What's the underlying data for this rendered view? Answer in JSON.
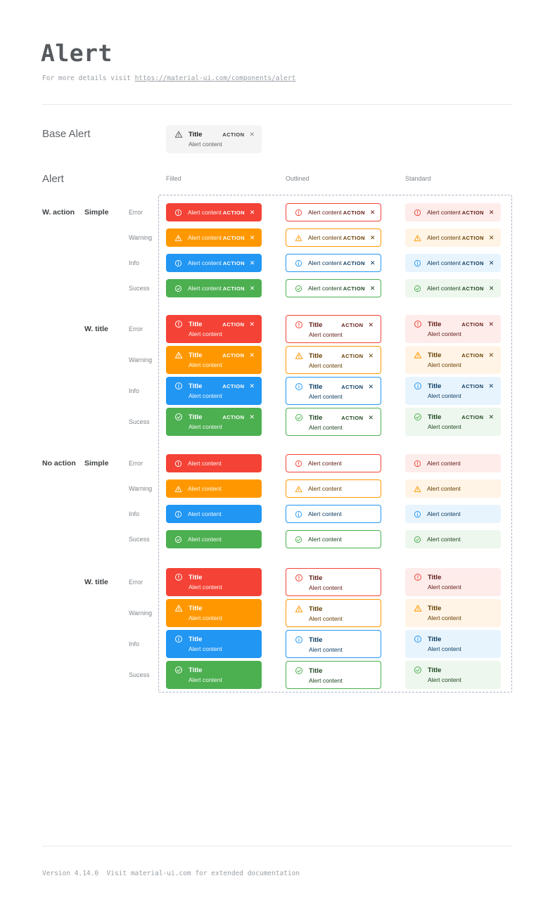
{
  "page": {
    "title": "Alert",
    "subtitle_prefix": "For more details visit ",
    "subtitle_link": "https://material-ui.com/components/alert",
    "footer": "Version 4.14.0  Visit material-ui.com for extended documentation"
  },
  "sections": {
    "base_label": "Base Alert",
    "grid_label": "Alert"
  },
  "base_alert": {
    "title": "Title",
    "content": "Alert content",
    "action_label": "ACTION",
    "close_glyph": "✕",
    "colors": {
      "bg": "#f4f4f4",
      "icon": "#5f6368",
      "title": "#202124",
      "content": "#5f6368",
      "action": "#3c4043",
      "close": "#80868b"
    }
  },
  "grid": {
    "columns": [
      {
        "key": "filled",
        "label": "Filled"
      },
      {
        "key": "outlined",
        "label": "Outlined"
      },
      {
        "key": "standard",
        "label": "Standard"
      }
    ],
    "groups": [
      {
        "row_label": "W. action",
        "sub_label": "Simple",
        "with_action": true,
        "with_title": false
      },
      {
        "row_label": "",
        "sub_label": "W. title",
        "with_action": true,
        "with_title": true
      },
      {
        "row_label": "No action",
        "sub_label": "Simple",
        "with_action": false,
        "with_title": false
      },
      {
        "row_label": "",
        "sub_label": "W. title",
        "with_action": false,
        "with_title": true
      }
    ],
    "severities": [
      {
        "key": "error",
        "label": "Error",
        "icon": "error-icon",
        "main": "#f44336",
        "standard_bg": "#fdecea",
        "dark": "#611a15"
      },
      {
        "key": "warning",
        "label": "Warning",
        "icon": "warning-icon",
        "main": "#ff9800",
        "standard_bg": "#fff4e5",
        "dark": "#663c00"
      },
      {
        "key": "info",
        "label": "Info",
        "icon": "info-icon",
        "main": "#2196f3",
        "standard_bg": "#e8f4fd",
        "dark": "#0d3c61"
      },
      {
        "key": "success",
        "label": "Sucess",
        "icon": "success-icon",
        "main": "#4caf50",
        "standard_bg": "#edf7ed",
        "dark": "#1e4620"
      }
    ],
    "alert_text": {
      "title": "Title",
      "content": "Alert content",
      "action": "ACTION",
      "close_glyph": "✕"
    }
  }
}
